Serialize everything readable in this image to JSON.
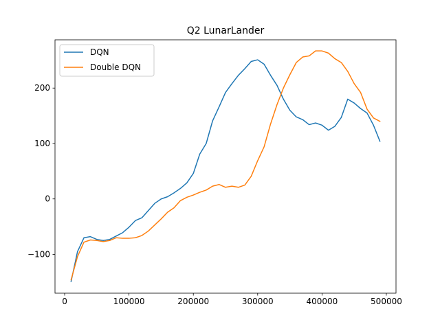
{
  "chart_data": {
    "type": "line",
    "title": "Q2 LunarLander",
    "xlabel": "",
    "ylabel": "",
    "xlim": [
      -15000,
      515000
    ],
    "ylim": [
      -170,
      287
    ],
    "x_ticks": [
      0,
      100000,
      200000,
      300000,
      400000,
      500000
    ],
    "x_tick_labels": [
      "0",
      "100000",
      "200000",
      "300000",
      "400000",
      "500000"
    ],
    "y_ticks": [
      -100,
      0,
      100,
      200
    ],
    "y_tick_labels": [
      "−100",
      "0",
      "100",
      "200"
    ],
    "grid": false,
    "legend_position": "upper-left",
    "series": [
      {
        "name": "DQN",
        "color": "#1f77b4",
        "x": [
          10000,
          20000,
          30000,
          40000,
          50000,
          60000,
          70000,
          80000,
          90000,
          100000,
          110000,
          120000,
          130000,
          140000,
          150000,
          160000,
          170000,
          180000,
          190000,
          200000,
          210000,
          220000,
          230000,
          240000,
          250000,
          260000,
          270000,
          280000,
          290000,
          300000,
          310000,
          320000,
          330000,
          340000,
          350000,
          360000,
          370000,
          380000,
          390000,
          400000,
          410000,
          420000,
          430000,
          440000,
          450000,
          460000,
          470000,
          480000,
          490000
        ],
        "y": [
          -149,
          -95,
          -70,
          -68,
          -73,
          -75,
          -73,
          -67,
          -61,
          -51,
          -39,
          -34,
          -21,
          -8,
          0,
          4,
          11,
          19,
          29,
          46,
          81,
          100,
          141,
          166,
          192,
          208,
          223,
          235,
          248,
          251,
          243,
          223,
          205,
          180,
          160,
          148,
          143,
          134,
          137,
          133,
          124,
          131,
          147,
          180,
          173,
          163,
          155,
          133,
          104
        ]
      },
      {
        "name": "Double DQN",
        "color": "#ff7f0e",
        "x": [
          10000,
          20000,
          30000,
          40000,
          50000,
          60000,
          70000,
          80000,
          90000,
          100000,
          110000,
          120000,
          130000,
          140000,
          150000,
          160000,
          170000,
          180000,
          190000,
          200000,
          210000,
          220000,
          230000,
          240000,
          250000,
          260000,
          270000,
          280000,
          290000,
          300000,
          310000,
          320000,
          330000,
          340000,
          350000,
          360000,
          370000,
          380000,
          390000,
          400000,
          410000,
          420000,
          430000,
          440000,
          450000,
          460000,
          470000,
          480000,
          490000
        ],
        "y": [
          -146,
          -104,
          -78,
          -74,
          -75,
          -77,
          -75,
          -70,
          -71,
          -71,
          -70,
          -66,
          -58,
          -47,
          -36,
          -24,
          -16,
          -3,
          3,
          7,
          12,
          16,
          23,
          26,
          21,
          23,
          21,
          25,
          41,
          69,
          94,
          135,
          170,
          200,
          224,
          246,
          256,
          258,
          267,
          267,
          263,
          253,
          246,
          230,
          208,
          192,
          162,
          146,
          140
        ]
      }
    ]
  }
}
